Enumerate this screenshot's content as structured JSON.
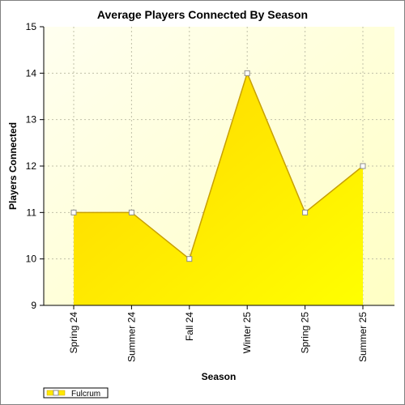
{
  "chart_data": {
    "type": "area",
    "title": "Average Players Connected By Season",
    "xlabel": "Season",
    "ylabel": "Players Connected",
    "categories": [
      "Spring 24",
      "Summer 24",
      "Fall 24",
      "Winter 25",
      "Spring 25",
      "Summer 25"
    ],
    "ylim": [
      9,
      15
    ],
    "yticks": [
      "9",
      "10",
      "11",
      "12",
      "13",
      "14",
      "15"
    ],
    "grid": true,
    "legend_position": "bottom-left",
    "series": [
      {
        "name": "Fulcrum",
        "values": [
          11,
          11,
          10,
          14,
          11,
          12
        ],
        "color": "#ffe800"
      }
    ],
    "colors": {
      "plot_bg_light": "#fffff0",
      "plot_bg_dark": "#ffffc4",
      "area_top": "#ffd400",
      "area_bottom": "#ffff00",
      "line": "#c8a000",
      "marker_fill": "#ffffff",
      "marker_stroke": "#8c8c8c",
      "grid": "#c0c0a8"
    }
  }
}
